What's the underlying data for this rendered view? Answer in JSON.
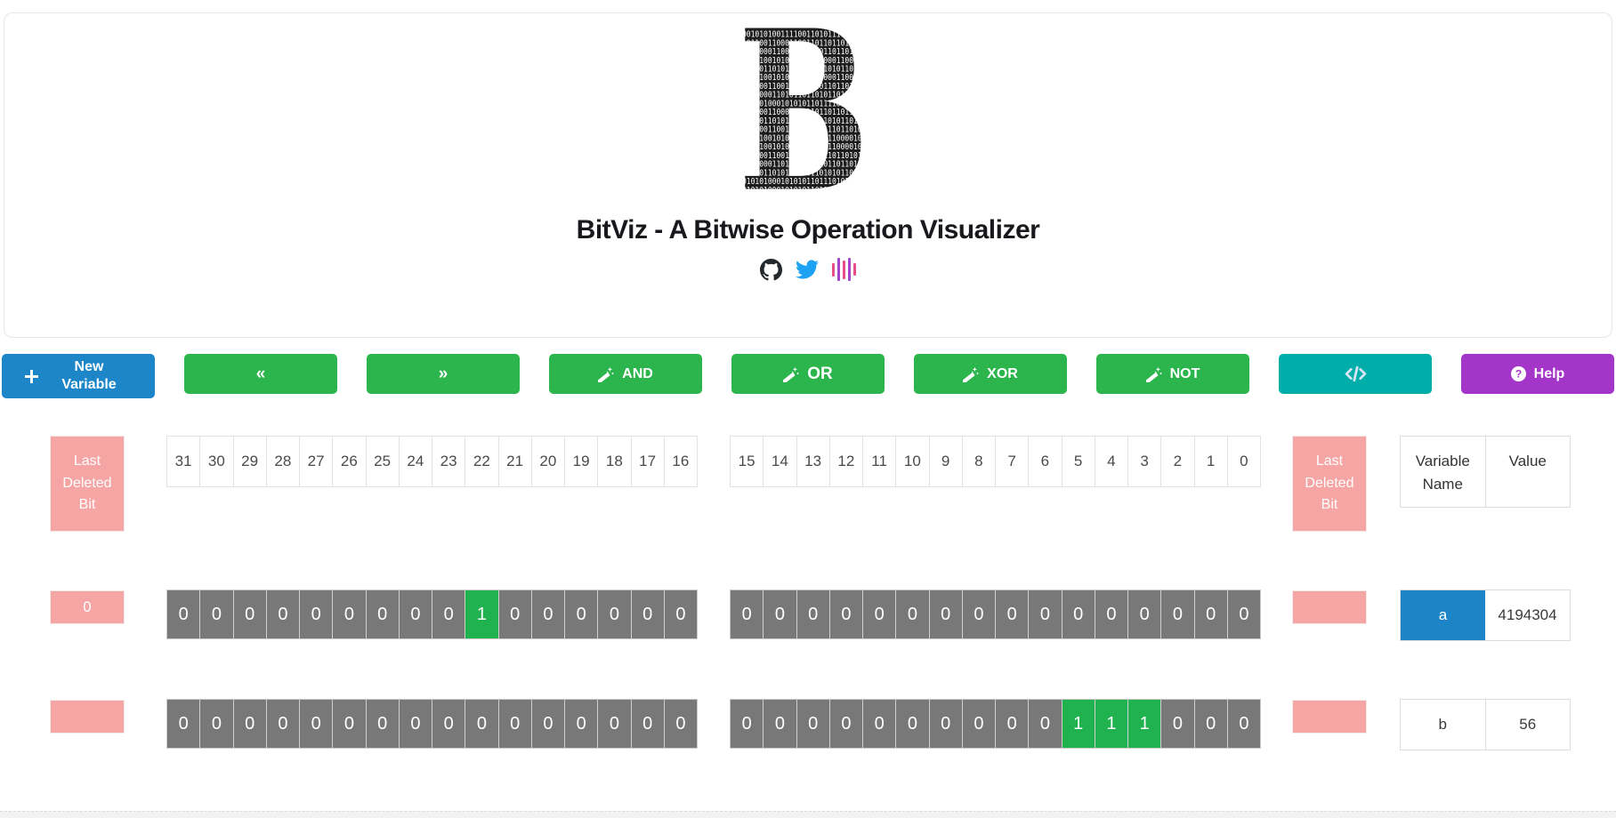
{
  "header": {
    "title": "BitViz - A Bitwise Operation Visualizer",
    "logo_letter": "B",
    "logo_binary_rows": [
      "0010101001111001101011101001110",
      "1011001100011001101101101101011",
      "1011000110011011010110110101101",
      "0010100101010110100000110010101",
      "0101011010101010110101011010110",
      "0010100101010110100000110010101",
      "1011001100110110110110110101101",
      "1011000110101101101011011010110",
      "0101010001010101101111010010101",
      "1011001100011001101101101101011",
      "0101011010101010110101011010110",
      "1011001100110110110111011010110",
      "0010100101010110100111000010101",
      "0010100101010110100111000010101",
      "1011001100110110110110110101101",
      "1011000110101101101011011010110",
      "0101011010101010110101011010110",
      "0101010001010101101110101010101",
      "0101010001010101101110101010101"
    ],
    "social_icons": [
      {
        "id": "github",
        "color": "#24292e"
      },
      {
        "id": "twitter",
        "color": "#1da1f2"
      },
      {
        "id": "glitch-waveform",
        "colors": [
          "#e84d8a",
          "#a543c9",
          "#e84d8a",
          "#a543c9",
          "#e84d8a"
        ]
      }
    ]
  },
  "toolbar": {
    "buttons": [
      {
        "id": "new-variable",
        "label": "New Variable",
        "icon": "plus",
        "color": "#1c86c8"
      },
      {
        "id": "shift-left",
        "label": "«",
        "icon": "",
        "color": "#2cb54c"
      },
      {
        "id": "shift-right",
        "label": "»",
        "icon": "",
        "color": "#2cb54c"
      },
      {
        "id": "and",
        "label": "AND",
        "icon": "wand",
        "color": "#2cb54c"
      },
      {
        "id": "or",
        "label": "OR",
        "icon": "wand",
        "color": "#2cb54c"
      },
      {
        "id": "xor",
        "label": "XOR",
        "icon": "wand",
        "color": "#2cb54c"
      },
      {
        "id": "not",
        "label": "NOT",
        "icon": "wand",
        "color": "#2cb54c"
      },
      {
        "id": "code",
        "label": "",
        "icon": "code",
        "color": "#00ada9"
      },
      {
        "id": "help",
        "label": "Help",
        "icon": "question",
        "color": "#a435c9"
      }
    ]
  },
  "labels": {
    "last_deleted_bit": "Last Deleted Bit",
    "variable_name": "Variable Name",
    "value": "Value"
  },
  "bit_indices_high": [
    31,
    30,
    29,
    28,
    27,
    26,
    25,
    24,
    23,
    22,
    21,
    20,
    19,
    18,
    17,
    16
  ],
  "bit_indices_low": [
    15,
    14,
    13,
    12,
    11,
    10,
    9,
    8,
    7,
    6,
    5,
    4,
    3,
    2,
    1,
    0
  ],
  "variables": [
    {
      "name": "a",
      "value": "4194304",
      "selected": true,
      "last_deleted_bit": "0",
      "bits": "00000000010000000000000000000000"
    },
    {
      "name": "b",
      "value": "56",
      "selected": false,
      "last_deleted_bit": "",
      "bits": "00000000000000000000000000111000"
    }
  ],
  "colors": {
    "primary_blue": "#1c86c8",
    "action_green": "#2cb54c",
    "teal": "#00ada9",
    "purple": "#a435c9",
    "pink_indicator": "#f6a5a5",
    "bit_off_gray": "#787878",
    "bit_on_green": "#20b24e",
    "selected_name_blue": "#1d84c8"
  }
}
